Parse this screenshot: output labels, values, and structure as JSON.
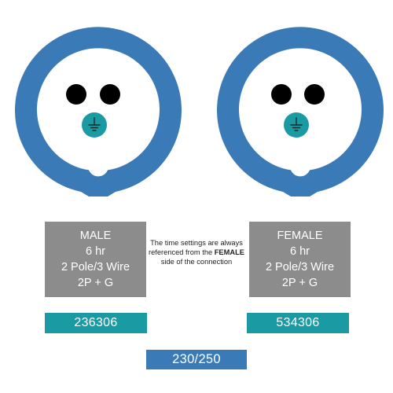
{
  "colors": {
    "ring": "#3a7ab7",
    "earth": "#1a9aa3",
    "info_box": "#8c8c8c",
    "code_box": "#1a9aa3",
    "voltage_box": "#3a7ab7"
  },
  "male": {
    "title": "MALE",
    "time": "6 hr",
    "poles": "2 Pole/3 Wire",
    "config": "2P + G",
    "code": "236306",
    "icon": "earth-ground-icon"
  },
  "female": {
    "title": "FEMALE",
    "time": "6 hr",
    "poles": "2 Pole/3 Wire",
    "config": "2P + G",
    "code": "534306",
    "icon": "earth-ground-icon"
  },
  "note": {
    "before": "The time settings are always referenced from the ",
    "emphasis": "FEMALE",
    "after": " side of the connection"
  },
  "voltage": "230/250"
}
